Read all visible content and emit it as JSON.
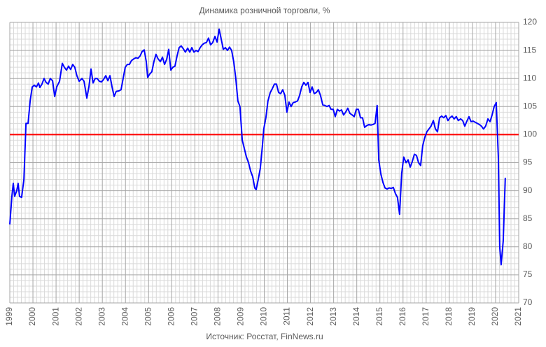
{
  "chart_data": {
    "type": "line",
    "title": "Динамика розничной торговли, %",
    "source": "Источник: Росстат, FinNews.ru",
    "x": [
      1999.0,
      1999.09,
      1999.15,
      1999.21,
      1999.3,
      1999.36,
      1999.42,
      1999.51,
      1999.61,
      1999.7,
      1999.79,
      1999.88,
      1999.97,
      2000.06,
      2000.15,
      2000.24,
      2000.3,
      2000.39,
      2000.48,
      2000.57,
      2000.66,
      2000.75,
      2000.85,
      2000.94,
      2001.03,
      2001.15,
      2001.27,
      2001.36,
      2001.45,
      2001.54,
      2001.63,
      2001.72,
      2001.81,
      2001.9,
      2002.0,
      2002.12,
      2002.21,
      2002.33,
      2002.42,
      2002.51,
      2002.6,
      2002.69,
      2002.78,
      2002.87,
      2002.96,
      2003.05,
      2003.15,
      2003.24,
      2003.33,
      2003.42,
      2003.51,
      2003.6,
      2003.72,
      2003.81,
      2003.9,
      2003.99,
      2004.08,
      2004.17,
      2004.26,
      2004.36,
      2004.45,
      2004.54,
      2004.63,
      2004.72,
      2004.81,
      2004.9,
      2004.96,
      2005.05,
      2005.14,
      2005.23,
      2005.32,
      2005.41,
      2005.51,
      2005.6,
      2005.69,
      2005.78,
      2005.87,
      2005.96,
      2006.05,
      2006.14,
      2006.23,
      2006.32,
      2006.41,
      2006.5,
      2006.59,
      2006.69,
      2006.78,
      2006.87,
      2006.96,
      2007.05,
      2007.14,
      2007.23,
      2007.32,
      2007.41,
      2007.5,
      2007.59,
      2007.68,
      2007.77,
      2007.87,
      2007.96,
      2008.05,
      2008.14,
      2008.23,
      2008.32,
      2008.41,
      2008.5,
      2008.59,
      2008.68,
      2008.77,
      2008.86,
      2008.95,
      2009.05,
      2009.14,
      2009.23,
      2009.32,
      2009.41,
      2009.5,
      2009.59,
      2009.65,
      2009.74,
      2009.83,
      2009.92,
      2009.98,
      2010.07,
      2010.16,
      2010.26,
      2010.35,
      2010.44,
      2010.53,
      2010.62,
      2010.71,
      2010.8,
      2010.89,
      2010.98,
      2011.07,
      2011.16,
      2011.25,
      2011.34,
      2011.44,
      2011.53,
      2011.62,
      2011.71,
      2011.8,
      2011.89,
      2011.98,
      2012.07,
      2012.16,
      2012.25,
      2012.34,
      2012.43,
      2012.53,
      2012.62,
      2012.71,
      2012.8,
      2012.89,
      2012.98,
      2013.07,
      2013.16,
      2013.25,
      2013.34,
      2013.43,
      2013.52,
      2013.61,
      2013.7,
      2013.8,
      2013.89,
      2013.98,
      2014.07,
      2014.16,
      2014.25,
      2014.34,
      2014.43,
      2014.52,
      2014.61,
      2014.7,
      2014.79,
      2014.88,
      2014.95,
      2015.04,
      2015.13,
      2015.22,
      2015.31,
      2015.4,
      2015.49,
      2015.58,
      2015.67,
      2015.76,
      2015.85,
      2015.94,
      2016.03,
      2016.13,
      2016.22,
      2016.31,
      2016.4,
      2016.49,
      2016.58,
      2016.67,
      2016.76,
      2016.85,
      2016.94,
      2017.03,
      2017.12,
      2017.21,
      2017.31,
      2017.4,
      2017.49,
      2017.58,
      2017.67,
      2017.76,
      2017.85,
      2017.94,
      2018.03,
      2018.12,
      2018.21,
      2018.3,
      2018.39,
      2018.49,
      2018.58,
      2018.67,
      2018.76,
      2018.85,
      2018.94,
      2019.03,
      2019.12,
      2019.21,
      2019.3,
      2019.39,
      2019.48,
      2019.57,
      2019.67,
      2019.76,
      2019.85,
      2019.94,
      2020.03,
      2020.12,
      2020.18,
      2020.24,
      2020.33,
      2020.42
    ],
    "series": [
      {
        "color": "#0000ff",
        "values": [
          84,
          89,
          91.3,
          89,
          90,
          91.3,
          89,
          88.8,
          92,
          102,
          102,
          106,
          108.5,
          108.8,
          108.5,
          109.2,
          108.4,
          109,
          110,
          109.3,
          109,
          110,
          109.6,
          106.8,
          108.5,
          109.5,
          112.7,
          112,
          111.5,
          112.2,
          111.6,
          112.5,
          112,
          110.5,
          109.5,
          110,
          109.5,
          106.5,
          108.5,
          111.7,
          109.2,
          110,
          110,
          109.5,
          109.4,
          109.8,
          110.5,
          109.6,
          110.5,
          108.5,
          106.8,
          107.7,
          107.8,
          108,
          110,
          112,
          112.5,
          112.5,
          113.2,
          113.5,
          113.7,
          113.6,
          114,
          114.8,
          115.1,
          113,
          110.2,
          110.8,
          111.2,
          113,
          114.3,
          113.5,
          113,
          113.8,
          112.5,
          113.4,
          115.2,
          111.5,
          112,
          112.2,
          114,
          115.5,
          115.8,
          115.3,
          114.7,
          115.4,
          114.7,
          115.5,
          114.7,
          115,
          114.8,
          115.5,
          116,
          116.3,
          116.4,
          117.2,
          116,
          116.4,
          117.5,
          116.5,
          118.8,
          117,
          115.2,
          115.5,
          115,
          115.6,
          115,
          113,
          110,
          106,
          105,
          99,
          97.5,
          96,
          95,
          93.5,
          92.5,
          90.5,
          90.2,
          92,
          94,
          98,
          101,
          103,
          106,
          107.5,
          108.2,
          109,
          109,
          107.5,
          107.3,
          108,
          107,
          104,
          105.8,
          105,
          105.7,
          105.8,
          106,
          107,
          108.5,
          109.3,
          108.8,
          109.3,
          107.5,
          108.5,
          107.3,
          107.5,
          108,
          107,
          105.3,
          105.2,
          105,
          105.2,
          104.5,
          104.5,
          103.2,
          104.5,
          104.2,
          104.4,
          103.5,
          104,
          104.7,
          103.8,
          103.5,
          103.2,
          104.5,
          104.5,
          103,
          103,
          101.3,
          101.6,
          101.8,
          101.7,
          101.8,
          102,
          105.2,
          95.5,
          93,
          91.5,
          90.5,
          90.3,
          90.5,
          90.4,
          90.6,
          89.5,
          88.8,
          85.8,
          93,
          96,
          95,
          95.5,
          94.2,
          95.2,
          96.5,
          96.3,
          95,
          94.5,
          98,
          99.5,
          100.5,
          101,
          101.5,
          102.5,
          101,
          100.5,
          103,
          103.3,
          103,
          103.4,
          102.5,
          103,
          103.3,
          102.8,
          103.2,
          102.5,
          102.8,
          102.5,
          101.5,
          102.4,
          103.2,
          102.3,
          102.4,
          102.2,
          102,
          101.8,
          101.5,
          101,
          101.5,
          102.8,
          102.3,
          103.5,
          105,
          105.7,
          96,
          80,
          76.8,
          81,
          92.3
        ]
      }
    ],
    "hline": {
      "value": 100,
      "color": "#ff0000"
    },
    "xlim": [
      1999,
      2021
    ],
    "xticks": [
      1999,
      2000,
      2001,
      2002,
      2003,
      2004,
      2005,
      2006,
      2007,
      2008,
      2009,
      2010,
      2011,
      2012,
      2013,
      2014,
      2015,
      2016,
      2017,
      2018,
      2019,
      2020,
      2021
    ],
    "ylim": [
      70,
      120
    ],
    "yticks": [
      70,
      75,
      80,
      85,
      90,
      95,
      100,
      105,
      110,
      115,
      120
    ],
    "grid": true,
    "minor_grid": true
  }
}
